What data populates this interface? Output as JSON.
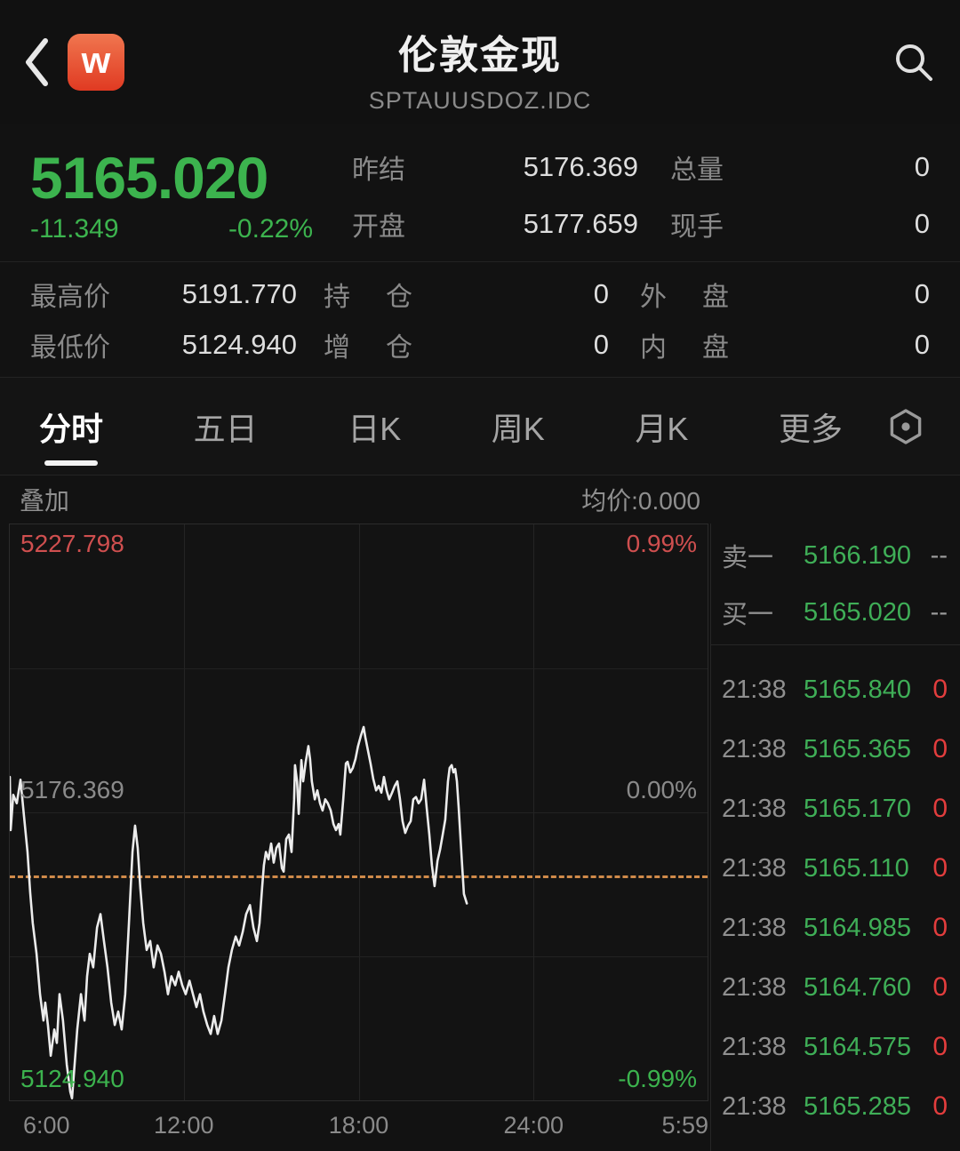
{
  "header": {
    "title": "伦敦金现",
    "subtitle": "SPTAUUSDOZ.IDC",
    "logo_text": "w",
    "icons": {
      "back": "chevron-left",
      "search": "magnifier"
    }
  },
  "quote": {
    "last_price": "5165.020",
    "change": "-11.349",
    "change_pct": "-0.22%",
    "mid": [
      {
        "label": "昨结",
        "value": "5176.369"
      },
      {
        "label": "开盘",
        "value": "5177.659"
      }
    ],
    "right": [
      {
        "label": "总量",
        "value": "0"
      },
      {
        "label": "现手",
        "value": "0"
      }
    ]
  },
  "stats": {
    "rows": [
      [
        {
          "label": "最高价",
          "value": "5191.770"
        },
        {
          "label": "持仓",
          "value": "0"
        },
        {
          "label": "外盘",
          "value": "0"
        }
      ],
      [
        {
          "label": "最低价",
          "value": "5124.940"
        },
        {
          "label": "增仓",
          "value": "0"
        },
        {
          "label": "内盘",
          "value": "0"
        }
      ]
    ]
  },
  "tabs": {
    "items": [
      {
        "label": "分时",
        "active": true
      },
      {
        "label": "五日",
        "active": false
      },
      {
        "label": "日K",
        "active": false
      },
      {
        "label": "周K",
        "active": false
      },
      {
        "label": "月K",
        "active": false
      },
      {
        "label": "更多",
        "active": false
      }
    ],
    "settings_icon": "hex-gear"
  },
  "overlay": {
    "left": "叠加",
    "right": "均价:0.000"
  },
  "colors": {
    "up_down_green": "#3cb34e",
    "limit_red": "#cf4f4f",
    "trade_zero_red": "#e23d3d",
    "last_price_dash_orange": "#d08a4a",
    "logo_gradient_top": "#f0764f",
    "logo_gradient_bottom": "#e03a22",
    "chart_line": "#ececec"
  },
  "chart_data": {
    "type": "line",
    "title": "分时 intraday price line",
    "x_ticks": [
      "6:00",
      "12:00",
      "18:00",
      "24:00",
      "5:59"
    ],
    "x_range_hours": [
      0,
      24
    ],
    "ylim": [
      5124.94,
      5227.798
    ],
    "prev_close": 5176.369,
    "last_price": 5165.02,
    "day_high": 5191.77,
    "day_low": 5124.94,
    "y_left_labels": {
      "top": "5227.798",
      "mid": "5176.369",
      "bottom": "5124.940"
    },
    "y_right_labels": {
      "top": "0.99%",
      "mid": "0.00%",
      "bottom": "-0.99%"
    },
    "grid": "quarter gridlines on",
    "legend": "none",
    "series": [
      {
        "name": "price",
        "points": [
          [
            0.0,
            5182.7
          ],
          [
            0.03,
            5173.2
          ],
          [
            0.12,
            5179.5
          ],
          [
            0.24,
            5178.0
          ],
          [
            0.37,
            5182.2
          ],
          [
            0.49,
            5175.6
          ],
          [
            0.61,
            5169.3
          ],
          [
            0.7,
            5162.1
          ],
          [
            0.79,
            5156.6
          ],
          [
            0.92,
            5151.1
          ],
          [
            1.04,
            5143.9
          ],
          [
            1.16,
            5139.2
          ],
          [
            1.22,
            5142.4
          ],
          [
            1.31,
            5138.4
          ],
          [
            1.41,
            5132.9
          ],
          [
            1.53,
            5137.6
          ],
          [
            1.62,
            5135.2
          ],
          [
            1.71,
            5143.9
          ],
          [
            1.83,
            5139.2
          ],
          [
            1.96,
            5131.3
          ],
          [
            2.08,
            5126.5
          ],
          [
            2.14,
            5125.3
          ],
          [
            2.23,
            5131.3
          ],
          [
            2.32,
            5137.6
          ],
          [
            2.45,
            5143.9
          ],
          [
            2.57,
            5139.2
          ],
          [
            2.66,
            5147.1
          ],
          [
            2.75,
            5151.1
          ],
          [
            2.87,
            5148.7
          ],
          [
            3.0,
            5155.8
          ],
          [
            3.12,
            5158.2
          ],
          [
            3.24,
            5153.4
          ],
          [
            3.36,
            5148.7
          ],
          [
            3.49,
            5142.4
          ],
          [
            3.61,
            5138.4
          ],
          [
            3.73,
            5140.8
          ],
          [
            3.85,
            5137.6
          ],
          [
            3.97,
            5143.9
          ],
          [
            4.1,
            5156.6
          ],
          [
            4.22,
            5169.3
          ],
          [
            4.31,
            5174.0
          ],
          [
            4.4,
            5170.0
          ],
          [
            4.49,
            5162.9
          ],
          [
            4.59,
            5156.6
          ],
          [
            4.71,
            5151.8
          ],
          [
            4.83,
            5153.4
          ],
          [
            4.95,
            5148.7
          ],
          [
            5.08,
            5152.6
          ],
          [
            5.2,
            5151.1
          ],
          [
            5.32,
            5147.9
          ],
          [
            5.44,
            5143.9
          ],
          [
            5.56,
            5147.1
          ],
          [
            5.69,
            5145.5
          ],
          [
            5.81,
            5147.9
          ],
          [
            5.93,
            5145.5
          ],
          [
            6.05,
            5143.9
          ],
          [
            6.18,
            5146.3
          ],
          [
            6.3,
            5143.9
          ],
          [
            6.42,
            5141.6
          ],
          [
            6.54,
            5143.9
          ],
          [
            6.66,
            5140.8
          ],
          [
            6.79,
            5138.4
          ],
          [
            6.91,
            5136.8
          ],
          [
            7.03,
            5140.0
          ],
          [
            7.15,
            5136.8
          ],
          [
            7.28,
            5139.2
          ],
          [
            7.4,
            5143.9
          ],
          [
            7.52,
            5148.7
          ],
          [
            7.64,
            5151.8
          ],
          [
            7.77,
            5154.2
          ],
          [
            7.89,
            5152.6
          ],
          [
            8.01,
            5155.0
          ],
          [
            8.13,
            5158.2
          ],
          [
            8.26,
            5159.8
          ],
          [
            8.38,
            5155.8
          ],
          [
            8.5,
            5153.4
          ],
          [
            8.59,
            5156.6
          ],
          [
            8.68,
            5162.9
          ],
          [
            8.74,
            5166.9
          ],
          [
            8.81,
            5169.3
          ],
          [
            8.9,
            5168.0
          ],
          [
            8.99,
            5170.8
          ],
          [
            9.08,
            5167.4
          ],
          [
            9.17,
            5170.0
          ],
          [
            9.26,
            5170.8
          ],
          [
            9.36,
            5166.4
          ],
          [
            9.42,
            5165.8
          ],
          [
            9.51,
            5171.6
          ],
          [
            9.6,
            5172.4
          ],
          [
            9.69,
            5169.3
          ],
          [
            9.78,
            5178.7
          ],
          [
            9.81,
            5184.8
          ],
          [
            9.88,
            5181.9
          ],
          [
            9.94,
            5176.1
          ],
          [
            10.03,
            5185.7
          ],
          [
            10.09,
            5181.9
          ],
          [
            10.18,
            5185.4
          ],
          [
            10.27,
            5188.2
          ],
          [
            10.33,
            5185.9
          ],
          [
            10.39,
            5181.9
          ],
          [
            10.49,
            5178.7
          ],
          [
            10.58,
            5180.3
          ],
          [
            10.67,
            5178.0
          ],
          [
            10.76,
            5176.7
          ],
          [
            10.85,
            5178.7
          ],
          [
            10.94,
            5178.0
          ],
          [
            11.04,
            5176.7
          ],
          [
            11.13,
            5174.3
          ],
          [
            11.22,
            5173.2
          ],
          [
            11.31,
            5174.3
          ],
          [
            11.37,
            5172.4
          ],
          [
            11.47,
            5178.7
          ],
          [
            11.56,
            5185.1
          ],
          [
            11.62,
            5185.4
          ],
          [
            11.71,
            5183.5
          ],
          [
            11.8,
            5184.3
          ],
          [
            11.89,
            5185.9
          ],
          [
            11.98,
            5188.2
          ],
          [
            12.08,
            5190.1
          ],
          [
            12.17,
            5191.6
          ],
          [
            12.23,
            5189.8
          ],
          [
            12.32,
            5187.4
          ],
          [
            12.41,
            5185.1
          ],
          [
            12.5,
            5182.4
          ],
          [
            12.6,
            5180.3
          ],
          [
            12.69,
            5181.1
          ],
          [
            12.78,
            5179.9
          ],
          [
            12.87,
            5182.7
          ],
          [
            12.96,
            5180.3
          ],
          [
            13.05,
            5178.7
          ],
          [
            13.15,
            5179.9
          ],
          [
            13.24,
            5181.1
          ],
          [
            13.33,
            5181.9
          ],
          [
            13.42,
            5178.7
          ],
          [
            13.51,
            5174.8
          ],
          [
            13.6,
            5172.7
          ],
          [
            13.7,
            5174.0
          ],
          [
            13.79,
            5174.8
          ],
          [
            13.88,
            5178.7
          ],
          [
            13.97,
            5179.1
          ],
          [
            14.06,
            5178.0
          ],
          [
            14.15,
            5178.7
          ],
          [
            14.25,
            5182.2
          ],
          [
            14.34,
            5177.2
          ],
          [
            14.43,
            5172.4
          ],
          [
            14.52,
            5166.9
          ],
          [
            14.61,
            5163.2
          ],
          [
            14.71,
            5167.7
          ],
          [
            14.8,
            5169.7
          ],
          [
            14.89,
            5172.4
          ],
          [
            14.98,
            5175.1
          ],
          [
            15.07,
            5181.9
          ],
          [
            15.13,
            5184.3
          ],
          [
            15.2,
            5184.8
          ],
          [
            15.26,
            5183.5
          ],
          [
            15.32,
            5184.1
          ],
          [
            15.38,
            5181.9
          ],
          [
            15.44,
            5177.2
          ],
          [
            15.5,
            5171.9
          ],
          [
            15.56,
            5166.9
          ],
          [
            15.62,
            5161.8
          ],
          [
            15.72,
            5160.1
          ]
        ]
      }
    ]
  },
  "right_panel": {
    "ask": {
      "label": "卖一",
      "price": "5166.190",
      "qty": "--"
    },
    "bid": {
      "label": "买一",
      "price": "5165.020",
      "qty": "--"
    },
    "trades": [
      {
        "time": "21:38",
        "price": "5165.840",
        "qty": "0"
      },
      {
        "time": "21:38",
        "price": "5165.365",
        "qty": "0"
      },
      {
        "time": "21:38",
        "price": "5165.170",
        "qty": "0"
      },
      {
        "time": "21:38",
        "price": "5165.110",
        "qty": "0"
      },
      {
        "time": "21:38",
        "price": "5164.985",
        "qty": "0"
      },
      {
        "time": "21:38",
        "price": "5164.760",
        "qty": "0"
      },
      {
        "time": "21:38",
        "price": "5164.575",
        "qty": "0"
      },
      {
        "time": "21:38",
        "price": "5165.285",
        "qty": "0"
      }
    ]
  }
}
